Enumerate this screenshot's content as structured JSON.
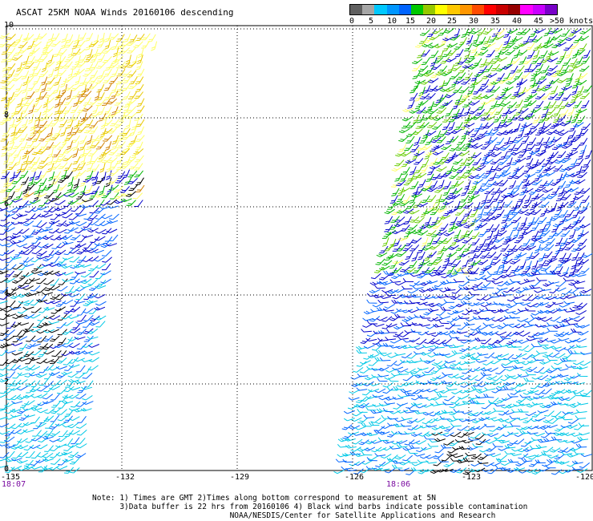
{
  "title": "ASCAT 25KM NOAA Winds 20160106 descending",
  "legend": {
    "colors": [
      "#606060",
      "#a6a6a6",
      "#00c8ff",
      "#0096ff",
      "#0064ff",
      "#00c800",
      "#96c800",
      "#ffff00",
      "#ffc800",
      "#ff9600",
      "#ff4b00",
      "#ff0000",
      "#c80000",
      "#960000",
      "#ff00ff",
      "#c800ff",
      "#7800c8"
    ],
    "labels": [
      "0",
      "5",
      "10",
      "15",
      "20",
      "25",
      "30",
      "35",
      "40",
      "45",
      ">50 knots"
    ]
  },
  "axes": {
    "lat_labels": [
      "10",
      "8",
      "6",
      "4",
      "2",
      "0"
    ],
    "lon_labels": [
      "-135",
      "-132",
      "-129",
      "-126",
      "-123",
      "-120"
    ]
  },
  "times": [
    "18:07",
    "18:06"
  ],
  "notes": [
    "Note: 1) Times are GMT 2)Times along bottom correspond to measurement at 5N",
    "      3)Data buffer is 22 hrs from 20160106 4) Black wind barbs indicate possible contamination",
    "                              NOAA/NESDIS/Center for Satellite Applications and Research"
  ],
  "map": {
    "projection": "lat-lon",
    "lat_range": [
      0,
      10
    ],
    "lon_range": [
      -135,
      -120
    ],
    "grid": "dotted",
    "swaths": 2,
    "barb_palette": {
      "light": "#ffff66",
      "gold": "#e8c800",
      "orange": "#d08000",
      "green": "#00b400",
      "lightgreen": "#66cc00",
      "blue": "#0000cc",
      "medblue": "#0064ff",
      "cyan": "#00c8e6",
      "black": "#000000"
    }
  }
}
